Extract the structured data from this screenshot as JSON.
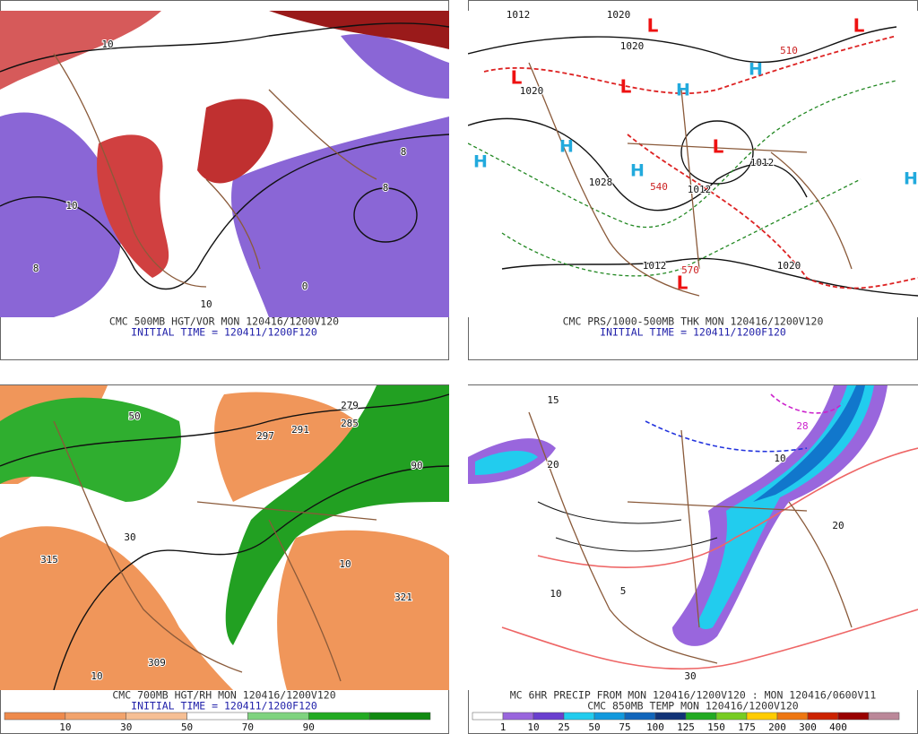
{
  "panels": [
    {
      "caption": "CMC 500MB HGT/VOR MON 120416/1200V120",
      "initial_time": "INITIAL TIME = 120411/1200F120",
      "labels": [
        "10",
        "8",
        "10",
        "8",
        "0",
        "10",
        "8"
      ]
    },
    {
      "caption": "CMC PRS/1000-500MB THK MON 120416/1200V120",
      "initial_time": "INITIAL TIME = 120411/1200F120",
      "labels": [
        "1012",
        "1020",
        "1020",
        "1020",
        "1028",
        "1012",
        "1012",
        "1020",
        "510",
        "540",
        "570",
        "1012"
      ],
      "lows": [
        "L",
        "L",
        "L",
        "L",
        "L",
        "L"
      ],
      "highs": [
        "H",
        "H",
        "H",
        "H",
        "H",
        "H"
      ]
    },
    {
      "caption": "CMC 700MB HGT/RH MON 120416/1200V120",
      "initial_time": "INITIAL TIME = 120411/1200F120",
      "labels": [
        "279",
        "285",
        "297",
        "291",
        "315",
        "321",
        "309",
        "50",
        "90",
        "10",
        "10",
        "30"
      ]
    },
    {
      "caption": "MC 6HR PRECIP FROM MON 120416/1200V120 : MON 120416/0600V11",
      "initial_time": "CMC 850MB TEMP MON 120416/1200V120",
      "labels": [
        "15",
        "20",
        "28",
        "30",
        "10",
        "5",
        "20",
        "10"
      ]
    }
  ],
  "colorbars": [
    {
      "colors": [
        "#ee8a4c",
        "#f2a36c",
        "#f6bf94",
        "#ffffff",
        "#7fd37f",
        "#22aa22",
        "#108a10"
      ],
      "labels": [
        "10",
        "30",
        "50",
        "70",
        "90"
      ]
    },
    {
      "colors": [
        "#ffffff",
        "#9966dd",
        "#6a3fcf",
        "#22ccee",
        "#1199dd",
        "#1166bb",
        "#113377",
        "#22aa22",
        "#77cc22",
        "#ffcc00",
        "#ee7711",
        "#cc2200",
        "#990000",
        "#bb8899"
      ],
      "labels": [
        "1",
        "10",
        "25",
        "50",
        "75",
        "100",
        "125",
        "150",
        "175",
        "200",
        "300",
        "400"
      ]
    }
  ]
}
